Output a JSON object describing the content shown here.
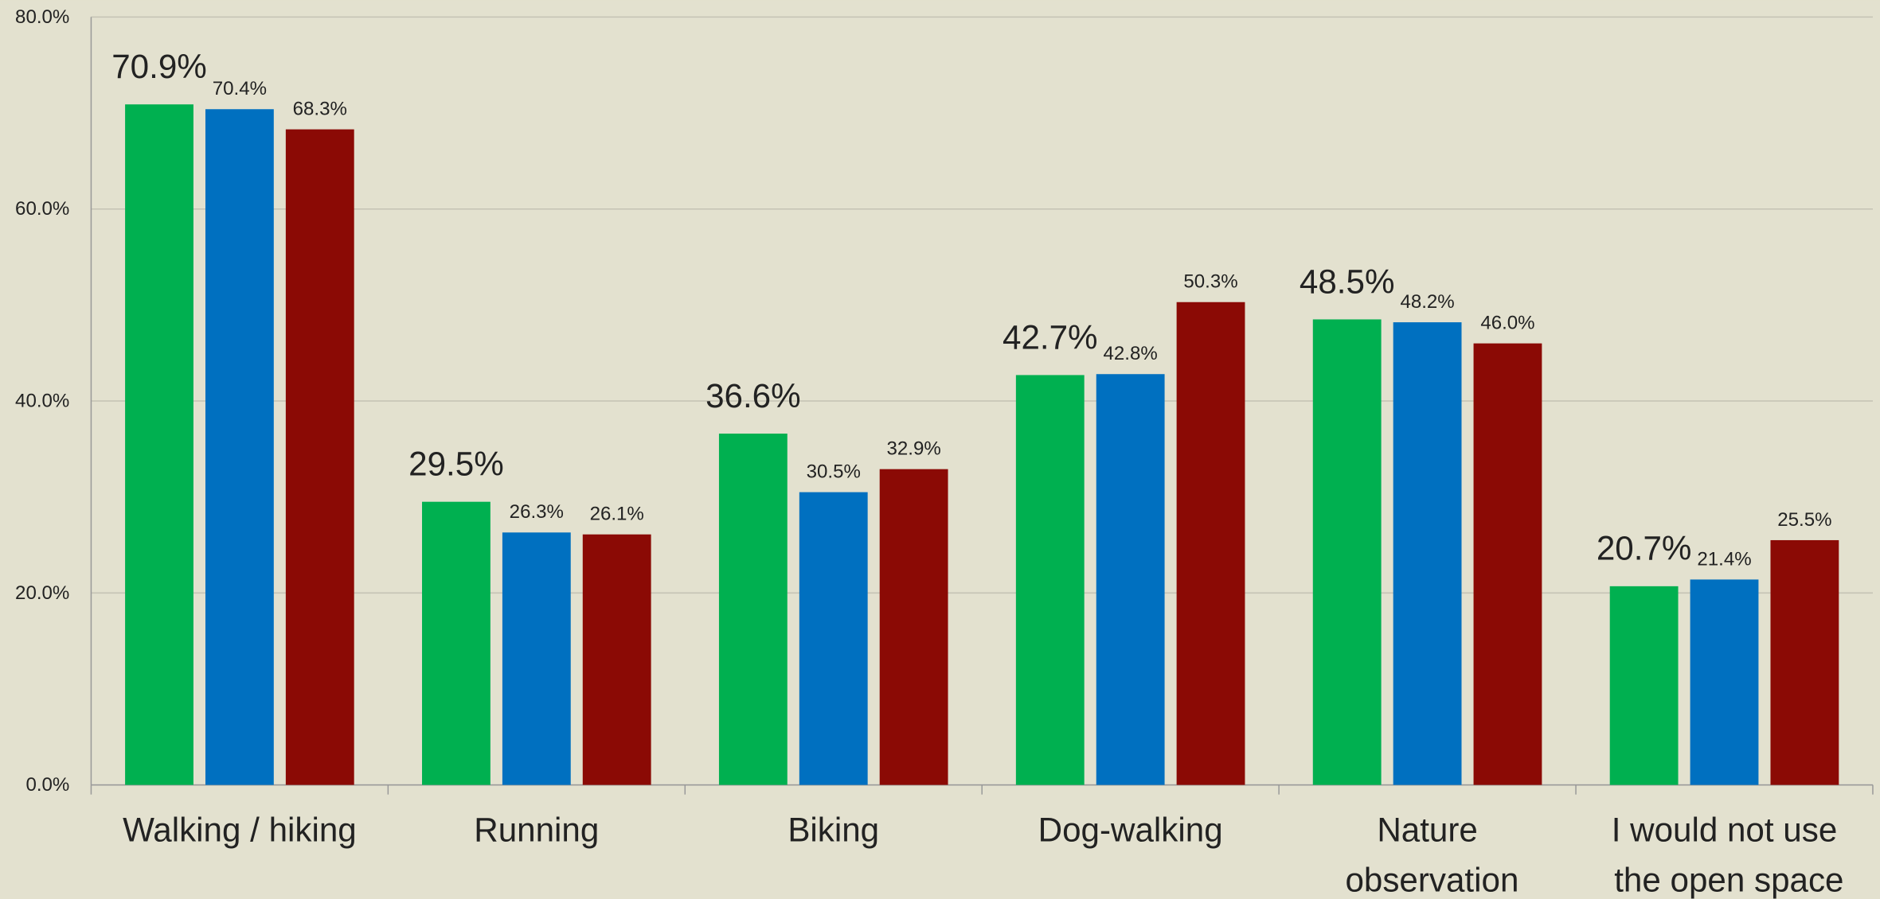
{
  "chart_data": {
    "type": "bar",
    "categories": [
      "Walking / hiking",
      "Running",
      "Biking",
      "Dog-walking",
      "Nature observation",
      "I would not use the open space"
    ],
    "series": [
      {
        "color": "#00b050",
        "values": [
          70.9,
          29.5,
          36.6,
          42.7,
          48.5,
          20.7
        ],
        "value_labels": [
          "70.9%",
          "29.5%",
          "36.6%",
          "42.7%",
          "48.5%",
          "20.7%"
        ]
      },
      {
        "color": "#0070c0",
        "values": [
          70.4,
          26.3,
          30.5,
          42.8,
          48.2,
          21.4
        ],
        "value_labels": [
          "70.4%",
          "26.3%",
          "30.5%",
          "42.8%",
          "48.2%",
          "21.4%"
        ]
      },
      {
        "color": "#8b0a05",
        "values": [
          68.3,
          26.1,
          32.9,
          50.3,
          46.0,
          25.5
        ],
        "value_labels": [
          "68.3%",
          "26.1%",
          "32.9%",
          "50.3%",
          "46.0%",
          "25.5%"
        ]
      }
    ],
    "ylim": [
      0,
      80
    ],
    "yticks": [
      {
        "value": 0,
        "label": "0.0%"
      },
      {
        "value": 20,
        "label": "20.0%"
      },
      {
        "value": 40,
        "label": "40.0%"
      },
      {
        "value": 60,
        "label": "60.0%"
      },
      {
        "value": 80,
        "label": "80.0%"
      }
    ],
    "grid": true
  }
}
